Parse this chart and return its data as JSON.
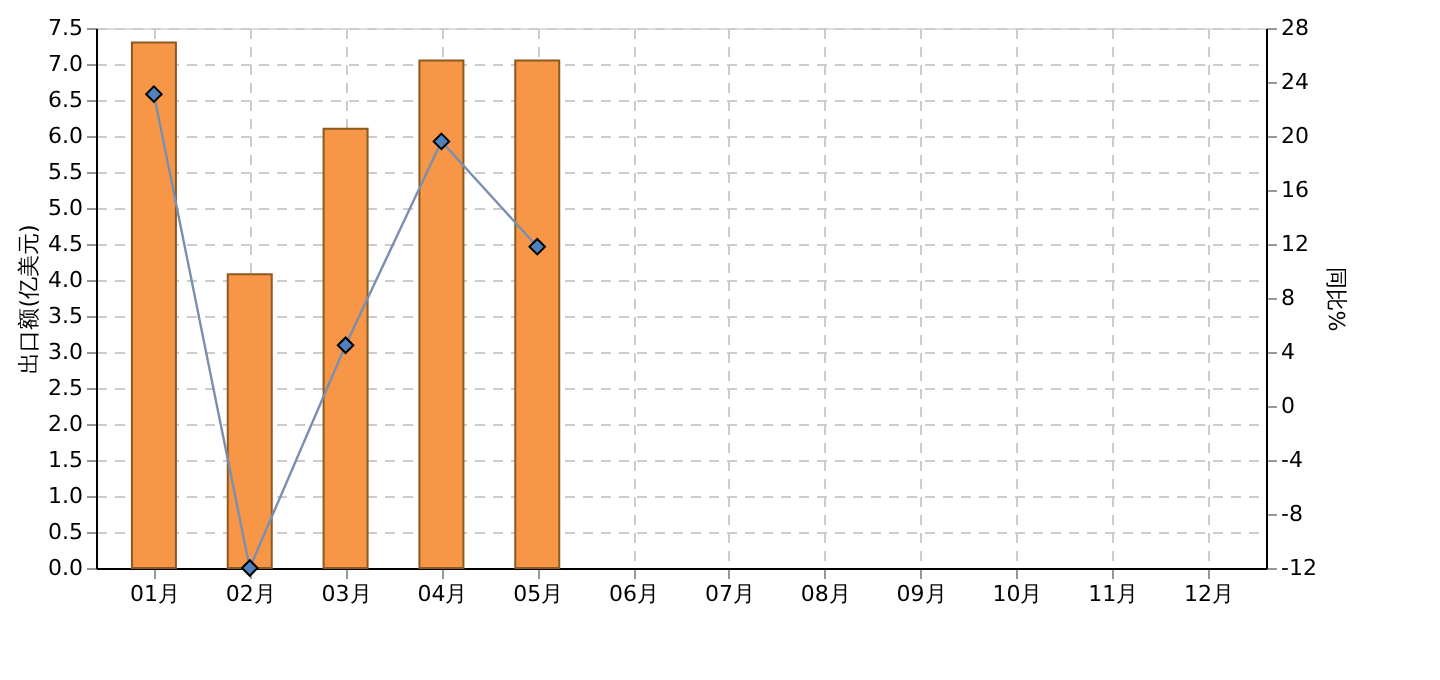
{
  "chart_data": {
    "type": "bar",
    "categories": [
      "01月",
      "02月",
      "03月",
      "04月",
      "05月",
      "06月",
      "07月",
      "08月",
      "09月",
      "10月",
      "11月",
      "12月"
    ],
    "ylabel": "出口额(亿美元)",
    "y2label": "同比%",
    "series": [
      {
        "type": "bar",
        "color": "#f79646",
        "values": [
          7.3,
          4.08,
          6.1,
          7.05,
          7.05,
          null,
          null,
          null,
          null,
          null,
          null,
          null
        ]
      },
      {
        "type": "line",
        "axis": "y2",
        "color": "#4f81bd",
        "marker": "diamond",
        "values": [
          23.1,
          -12,
          4.5,
          19.6,
          11.8,
          null,
          null,
          null,
          null,
          null,
          null,
          null
        ]
      }
    ],
    "ylim": [
      0,
      7.5
    ],
    "yticks": [
      {
        "value": 0,
        "label": "0.0"
      },
      0.5,
      {
        "value": 1,
        "label": "1.0"
      },
      1.5,
      {
        "value": 2,
        "label": "2.0"
      },
      2.5,
      {
        "value": 3,
        "label": "3.0"
      },
      3.5,
      {
        "value": 4,
        "label": "4.0"
      },
      4.5,
      {
        "value": 5,
        "label": "5.0"
      },
      5.5,
      {
        "value": 6,
        "label": "6.0"
      },
      6.5,
      {
        "value": 7,
        "label": "7.0"
      },
      7.5
    ],
    "y2lim": [
      -12,
      28
    ],
    "y2ticks": [
      -12,
      -8,
      -4,
      0,
      4,
      8,
      12,
      16,
      20,
      24,
      28
    ],
    "grid": true
  }
}
